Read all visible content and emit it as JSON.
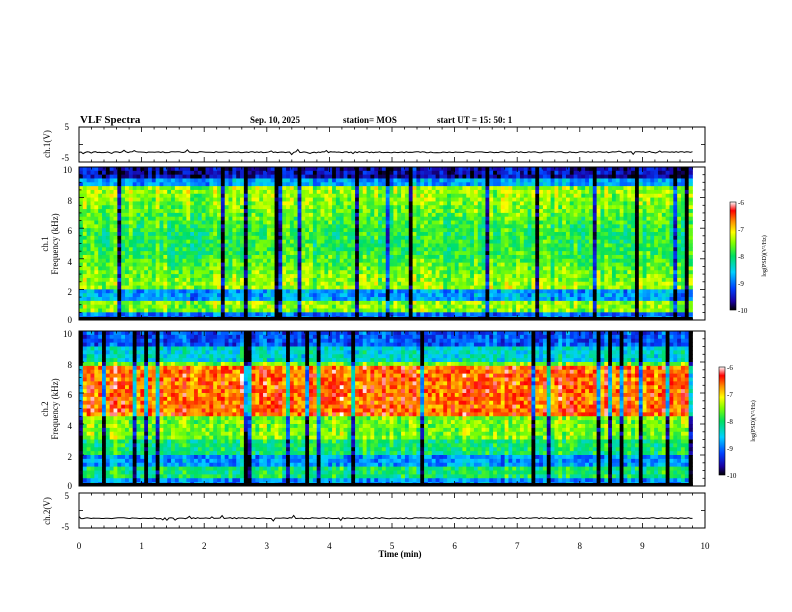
{
  "header": {
    "title": "VLF Spectra",
    "date": "Sep. 10, 2025",
    "station": "station= MOS",
    "start": "start UT =  15: 50: 1"
  },
  "chart_data": [
    {
      "type": "line",
      "name": "ch1-voltage",
      "ylabel": "ch.1(V)",
      "ylim": [
        -5,
        5
      ],
      "yticks": [
        "5",
        "-5"
      ],
      "baseline": -2.2
    },
    {
      "type": "heatmap",
      "name": "ch1-spectrogram",
      "ylabel_line1": "ch.1",
      "ylabel_line2": "Frequency (kHz)",
      "ylim": [
        0,
        10
      ],
      "yticks": [
        "0",
        "2",
        "4",
        "6",
        "8",
        "10"
      ],
      "colorbar": {
        "label": "log(PSD)(V²/Hz)",
        "ticks": [
          "-6",
          "-7",
          "-8",
          "-9",
          "-10"
        ],
        "range": [
          -10,
          -6
        ]
      }
    },
    {
      "type": "heatmap",
      "name": "ch2-spectrogram",
      "ylabel_line1": "ch.2",
      "ylabel_line2": "Frequency (kHz)",
      "ylim": [
        0,
        10
      ],
      "yticks": [
        "0",
        "2",
        "4",
        "6",
        "8",
        "10"
      ],
      "colorbar": {
        "label": "log(PSD)(V²/Hz)",
        "ticks": [
          "-6",
          "-7",
          "-8",
          "-9",
          "-10"
        ],
        "range": [
          -10,
          -6
        ]
      }
    },
    {
      "type": "line",
      "name": "ch2-voltage",
      "ylabel": "ch.2(V)",
      "ylim": [
        -5,
        5
      ],
      "yticks": [
        "5",
        "-5"
      ],
      "baseline": -2.2
    }
  ],
  "xaxis": {
    "label": "Time (min)",
    "xlim": [
      0,
      10
    ],
    "ticks": [
      "0",
      "1",
      "2",
      "3",
      "4",
      "5",
      "6",
      "7",
      "8",
      "9",
      "10"
    ],
    "data_end": 9.8
  }
}
